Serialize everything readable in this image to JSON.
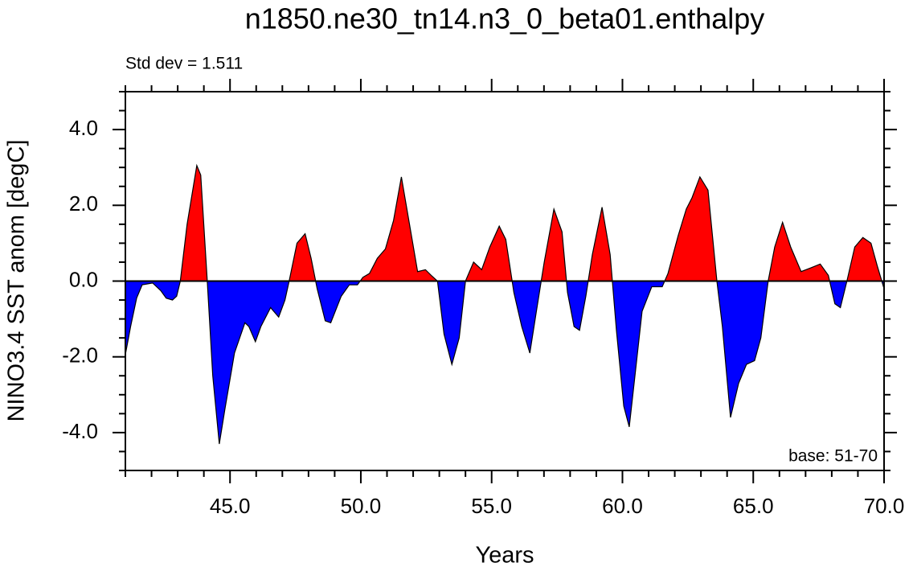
{
  "chart_data": {
    "type": "area",
    "title": "n1850.ne30_tn14.n3_0_beta01.enthalpy",
    "subtitle": "Std dev = 1.511",
    "annotation": "base: 51-70",
    "xlabel": "Years",
    "ylabel": "NINO3.4 SST anom [degC]",
    "x": [
      41.0,
      41.2,
      41.43,
      41.64,
      42.04,
      42.35,
      42.56,
      42.8,
      42.96,
      43.1,
      43.36,
      43.73,
      43.88,
      44.13,
      44.34,
      44.59,
      44.8,
      45.17,
      45.57,
      45.72,
      45.97,
      46.18,
      46.55,
      46.86,
      47.1,
      47.26,
      47.56,
      47.87,
      48.1,
      48.33,
      48.64,
      48.85,
      49.25,
      49.56,
      49.87,
      50.08,
      50.33,
      50.63,
      50.94,
      51.25,
      51.55,
      51.86,
      52.17,
      52.47,
      52.69,
      52.93,
      53.18,
      53.48,
      53.76,
      54.0,
      54.31,
      54.62,
      54.93,
      55.29,
      55.54,
      55.85,
      56.15,
      56.46,
      56.71,
      57.01,
      57.38,
      57.69,
      57.9,
      58.15,
      58.36,
      58.6,
      58.85,
      59.22,
      59.53,
      59.77,
      60.05,
      60.26,
      60.51,
      60.75,
      61.12,
      61.52,
      61.74,
      62.13,
      62.44,
      62.66,
      62.96,
      63.27,
      63.61,
      63.82,
      64.13,
      64.44,
      64.74,
      65.05,
      65.29,
      65.57,
      65.82,
      66.12,
      66.43,
      66.83,
      67.2,
      67.56,
      67.87,
      68.12,
      68.33,
      68.58,
      68.88,
      69.19,
      69.5,
      69.74,
      70.0
    ],
    "values": [
      -1.94,
      -1.2,
      -0.45,
      -0.1,
      -0.05,
      -0.25,
      -0.45,
      -0.5,
      -0.4,
      0,
      1.5,
      3.05,
      2.8,
      0,
      -2.5,
      -4.3,
      -3.4,
      -1.9,
      -1.1,
      -1.2,
      -1.6,
      -1.2,
      -0.7,
      -0.95,
      -0.5,
      0,
      1.0,
      1.25,
      0.6,
      -0.2,
      -1.05,
      -1.1,
      -0.4,
      -0.1,
      -0.1,
      0.1,
      0.2,
      0.6,
      0.85,
      1.6,
      2.75,
      1.5,
      0.25,
      0.3,
      0.15,
      0,
      -1.4,
      -2.2,
      -1.5,
      0,
      0.5,
      0.3,
      0.9,
      1.45,
      1.1,
      -0.3,
      -1.2,
      -1.9,
      -0.8,
      0.5,
      1.9,
      1.3,
      -0.3,
      -1.2,
      -1.3,
      -0.4,
      0.7,
      1.95,
      0.7,
      -1.3,
      -3.3,
      -3.85,
      -2.3,
      -0.8,
      -0.15,
      -0.15,
      0.2,
      1.2,
      1.9,
      2.2,
      2.75,
      2.4,
      0,
      -1.2,
      -3.6,
      -2.7,
      -2.2,
      -2.1,
      -1.5,
      0,
      0.9,
      1.55,
      0.9,
      0.25,
      0.35,
      0.45,
      0.15,
      -0.6,
      -0.7,
      0,
      0.9,
      1.15,
      1.0,
      0.4,
      -0.2
    ],
    "above_color": "#ff0000",
    "below_color": "#0000ff",
    "xlim": [
      41,
      70
    ],
    "ylim": [
      -5,
      5
    ],
    "xticks": [
      {
        "value": 45,
        "label": "45.0"
      },
      {
        "value": 50,
        "label": "50.0"
      },
      {
        "value": 55,
        "label": "55.0"
      },
      {
        "value": 60,
        "label": "60.0"
      },
      {
        "value": 65,
        "label": "65.0"
      },
      {
        "value": 70,
        "label": "70.0"
      }
    ],
    "yticks": [
      {
        "value": -4,
        "label": "-4.0"
      },
      {
        "value": -2,
        "label": "-2.0"
      },
      {
        "value": 0,
        "label": "0.0"
      },
      {
        "value": 2,
        "label": "2.0"
      },
      {
        "value": 4,
        "label": "4.0"
      }
    ],
    "xminorticks": [
      41,
      42,
      43,
      44,
      46,
      47,
      48,
      49,
      51,
      52,
      53,
      54,
      56,
      57,
      58,
      59,
      61,
      62,
      63,
      64,
      66,
      67,
      68,
      69
    ],
    "yminorticks": [
      -5,
      -4.5,
      -3.5,
      -3,
      -2.5,
      -1.5,
      -1,
      -0.5,
      0.5,
      1,
      1.5,
      2.5,
      3,
      3.5,
      4.5,
      5
    ]
  }
}
